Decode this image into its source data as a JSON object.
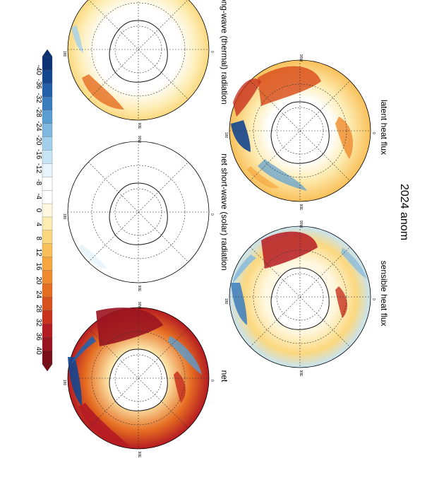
{
  "figure": {
    "title": "2024 anom"
  },
  "panels": [
    {
      "id": "latent",
      "label": "latent heat flux"
    },
    {
      "id": "sensible",
      "label": "sensible heat flux"
    },
    {
      "id": "longwave",
      "label": "long-wave (thermal) radiation"
    },
    {
      "id": "shortwave",
      "label": "net short-wave (solar) radiation"
    },
    {
      "id": "net",
      "label": "net"
    }
  ],
  "map_labels": {
    "lon_top": "90W",
    "lon_top_right": "60W",
    "lon_right_top": "30W",
    "lon_right": "0",
    "lon_right_bottom": "30E",
    "lon_bottom_right": "60E",
    "lon_bottom": "90E",
    "lon_bottom_left": "120E",
    "lon_left_bottom": "150E",
    "lon_left": "180",
    "lon_left_top": "150W",
    "lon_top_left": "120W"
  },
  "colorbar": {
    "ticks": [
      "-40",
      "-36",
      "-32",
      "-28",
      "-24",
      "-20",
      "-16",
      "-12",
      "-8",
      "-4",
      "0",
      "4",
      "8",
      "12",
      "16",
      "20",
      "24",
      "28",
      "32",
      "36",
      "40"
    ],
    "colors": [
      "#7a0f1a",
      "#9a1420",
      "#b51b22",
      "#c8321f",
      "#d9511e",
      "#e56d21",
      "#ee8b2c",
      "#f5a63e",
      "#f9c05a",
      "#fbd87f",
      "#fdecb2",
      "#fff8e0",
      "#ffffff",
      "#ffffff",
      "#e8f4fb",
      "#c7e4f4",
      "#a2d0ec",
      "#7fb8df",
      "#5a9dd0",
      "#3a7dbe",
      "#2460a8",
      "#14468f",
      "#0c3275"
    ]
  },
  "colors": {
    "coast": "#111111",
    "grid": "#333333",
    "red_dark": "#b51b22",
    "orange": "#ee8b2c",
    "blue_dark": "#14468f",
    "blue_light": "#a2d0ec"
  }
}
